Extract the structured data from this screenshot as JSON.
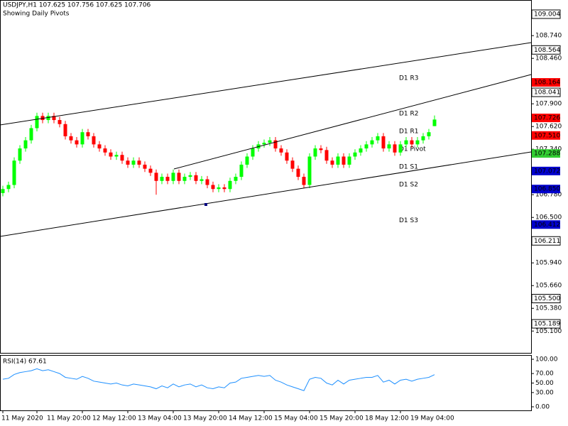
{
  "chart_data": [
    {
      "type": "candlestick",
      "title": "USDJPY,H1  107.625 107.756 107.625 107.706",
      "subtitle": "Showing Daily Pivots",
      "up_color": "#00ff00",
      "down_color": "#ff0000",
      "ylim": [
        104.831,
        109.179
      ],
      "yticks": [
        {
          "value": 108.74,
          "label": "108.740"
        },
        {
          "value": 108.46,
          "label": "108.460"
        },
        {
          "value": 107.9,
          "label": "107.900"
        },
        {
          "value": 107.62,
          "label": "107.620"
        },
        {
          "value": 107.34,
          "label": "107.340"
        },
        {
          "value": 106.78,
          "label": "106.780"
        },
        {
          "value": 106.5,
          "label": "106.500"
        },
        {
          "value": 105.94,
          "label": "105.940"
        },
        {
          "value": 105.66,
          "label": "105.660"
        },
        {
          "value": 105.38,
          "label": "105.380"
        },
        {
          "value": 105.1,
          "label": "105.100"
        }
      ],
      "xticks": [
        {
          "value": 0,
          "label": "11 May 2020"
        },
        {
          "value": 6,
          "label": "11 May 20:00"
        },
        {
          "value": 14,
          "label": "12 May 12:00"
        },
        {
          "value": 22,
          "label": "13 May 04:00"
        },
        {
          "value": 30,
          "label": "13 May 20:00"
        },
        {
          "value": 38,
          "label": "14 May 12:00"
        },
        {
          "value": 46,
          "label": "15 May 04:00"
        },
        {
          "value": 54,
          "label": "15 May 20:00"
        },
        {
          "value": 62,
          "label": "18 May 12:00"
        },
        {
          "value": 70,
          "label": "19 May 04:00"
        }
      ],
      "grid": true,
      "pivots": [
        {
          "name": "D1 R3",
          "value": 108.164,
          "label": "108.164",
          "color": "#ff0000"
        },
        {
          "name": "D1 R2",
          "value": 107.726,
          "label": "107.726",
          "color": "#ff0000"
        },
        {
          "name": "D1 R1",
          "value": 107.51,
          "label": "107.510",
          "color": "#ff0000"
        },
        {
          "name": "D1 Pivot",
          "value": 107.288,
          "label": "107.288",
          "color": "#32cd32"
        },
        {
          "name": "D1 S1",
          "value": 107.072,
          "label": "107.072",
          "color": "#0000cd"
        },
        {
          "name": "D1 S2",
          "value": 106.85,
          "label": "106.850",
          "color": "#0000cd"
        },
        {
          "name": "D1 S3",
          "value": 106.412,
          "label": "106.412",
          "color": "#0000cd"
        }
      ],
      "levels": [
        {
          "value": 109.004,
          "label": "109.004",
          "dashed": true
        },
        {
          "value": 108.564,
          "label": "108.564",
          "dashed": false
        },
        {
          "value": 108.041,
          "label": "108.041",
          "dashed": true
        },
        {
          "value": 106.211,
          "label": "106.211",
          "dashed": true
        },
        {
          "value": 105.5,
          "label": "105.500",
          "dashed": true
        },
        {
          "value": 105.189,
          "label": "105.189",
          "dashed": true
        }
      ],
      "candles": [
        [
          106.8,
          106.89,
          106.76,
          106.85
        ],
        [
          106.85,
          106.94,
          106.81,
          106.9
        ],
        [
          106.9,
          107.24,
          106.86,
          107.2
        ],
        [
          107.2,
          107.39,
          107.16,
          107.35
        ],
        [
          107.35,
          107.49,
          107.31,
          107.45
        ],
        [
          107.45,
          107.64,
          107.41,
          107.6
        ],
        [
          107.6,
          107.79,
          107.56,
          107.75
        ],
        [
          107.75,
          107.79,
          107.66,
          107.7
        ],
        [
          107.7,
          107.79,
          107.66,
          107.75
        ],
        [
          107.75,
          107.79,
          107.66,
          107.7
        ],
        [
          107.7,
          107.74,
          107.61,
          107.65
        ],
        [
          107.65,
          107.69,
          107.46,
          107.5
        ],
        [
          107.5,
          107.54,
          107.41,
          107.45
        ],
        [
          107.45,
          107.49,
          107.36,
          107.4
        ],
        [
          107.4,
          107.59,
          107.36,
          107.55
        ],
        [
          107.55,
          107.59,
          107.46,
          107.5
        ],
        [
          107.5,
          107.54,
          107.36,
          107.4
        ],
        [
          107.4,
          107.44,
          107.31,
          107.35
        ],
        [
          107.35,
          107.39,
          107.26,
          107.3
        ],
        [
          107.3,
          107.34,
          107.21,
          107.25
        ],
        [
          107.25,
          107.31,
          107.21,
          107.27
        ],
        [
          107.27,
          107.31,
          107.16,
          107.2
        ],
        [
          107.2,
          107.24,
          107.11,
          107.15
        ],
        [
          107.15,
          107.24,
          107.11,
          107.2
        ],
        [
          107.2,
          107.24,
          107.11,
          107.15
        ],
        [
          107.15,
          107.19,
          107.06,
          107.1
        ],
        [
          107.1,
          107.14,
          107.01,
          107.05
        ],
        [
          107.05,
          107.09,
          106.78,
          106.95
        ],
        [
          106.95,
          107.04,
          106.91,
          107.0
        ],
        [
          107.0,
          107.04,
          106.91,
          106.95
        ],
        [
          106.95,
          107.09,
          106.91,
          107.05
        ],
        [
          107.05,
          107.09,
          106.91,
          106.95
        ],
        [
          106.95,
          107.04,
          106.91,
          107.0
        ],
        [
          107.0,
          107.06,
          106.96,
          107.02
        ],
        [
          107.02,
          107.06,
          106.91,
          106.95
        ],
        [
          106.95,
          107.01,
          106.91,
          106.97
        ],
        [
          106.97,
          107.01,
          106.86,
          106.9
        ],
        [
          106.9,
          106.94,
          106.81,
          106.85
        ],
        [
          106.85,
          106.91,
          106.81,
          106.87
        ],
        [
          106.87,
          106.91,
          106.81,
          106.85
        ],
        [
          106.85,
          106.99,
          106.81,
          106.95
        ],
        [
          106.95,
          107.04,
          106.91,
          107.0
        ],
        [
          107.0,
          107.19,
          106.96,
          107.15
        ],
        [
          107.15,
          107.29,
          107.11,
          107.25
        ],
        [
          107.25,
          107.39,
          107.21,
          107.35
        ],
        [
          107.35,
          107.44,
          107.31,
          107.4
        ],
        [
          107.4,
          107.46,
          107.36,
          107.42
        ],
        [
          107.42,
          107.49,
          107.38,
          107.45
        ],
        [
          107.45,
          107.49,
          107.31,
          107.35
        ],
        [
          107.35,
          107.39,
          107.26,
          107.3
        ],
        [
          107.3,
          107.34,
          107.16,
          107.2
        ],
        [
          107.2,
          107.24,
          107.06,
          107.1
        ],
        [
          107.1,
          107.14,
          106.96,
          107.0
        ],
        [
          107.0,
          107.04,
          106.86,
          106.9
        ],
        [
          106.9,
          107.29,
          106.86,
          107.25
        ],
        [
          107.25,
          107.39,
          107.21,
          107.35
        ],
        [
          107.35,
          107.39,
          107.29,
          107.33
        ],
        [
          107.33,
          107.37,
          107.16,
          107.2
        ],
        [
          107.2,
          107.24,
          107.11,
          107.15
        ],
        [
          107.15,
          107.29,
          107.11,
          107.25
        ],
        [
          107.25,
          107.29,
          107.11,
          107.15
        ],
        [
          107.15,
          107.29,
          107.11,
          107.25
        ],
        [
          107.25,
          107.34,
          107.21,
          107.3
        ],
        [
          107.3,
          107.39,
          107.26,
          107.35
        ],
        [
          107.35,
          107.44,
          107.31,
          107.4
        ],
        [
          107.4,
          107.49,
          107.36,
          107.45
        ],
        [
          107.45,
          107.54,
          107.41,
          107.5
        ],
        [
          107.5,
          107.54,
          107.31,
          107.35
        ],
        [
          107.35,
          107.44,
          107.31,
          107.4
        ],
        [
          107.4,
          107.44,
          107.26,
          107.3
        ],
        [
          107.3,
          107.44,
          107.26,
          107.4
        ],
        [
          107.4,
          107.49,
          107.36,
          107.45
        ],
        [
          107.45,
          107.49,
          107.36,
          107.4
        ],
        [
          107.4,
          107.49,
          107.36,
          107.45
        ],
        [
          107.45,
          107.54,
          107.41,
          107.5
        ],
        [
          107.5,
          107.59,
          107.46,
          107.55
        ],
        [
          107.625,
          107.756,
          107.625,
          107.706
        ]
      ]
    },
    {
      "type": "line",
      "title": "RSI(14) 67.61",
      "color": "#1e90ff",
      "ylim": [
        -7.5,
        109
      ],
      "yticks": [
        {
          "value": 100,
          "label": "100.00"
        },
        {
          "value": 70,
          "label": "70.00"
        },
        {
          "value": 50,
          "label": "50.00"
        },
        {
          "value": 30,
          "label": "30.00"
        },
        {
          "value": 0,
          "label": "0.00"
        }
      ],
      "grid": true,
      "values": [
        58,
        60,
        68,
        72,
        74,
        76,
        80,
        76,
        78,
        74,
        70,
        62,
        60,
        58,
        64,
        60,
        54,
        52,
        50,
        48,
        50,
        46,
        44,
        48,
        46,
        44,
        42,
        38,
        44,
        40,
        48,
        42,
        46,
        48,
        42,
        46,
        40,
        38,
        42,
        40,
        50,
        52,
        60,
        62,
        64,
        66,
        64,
        66,
        56,
        52,
        46,
        42,
        38,
        34,
        58,
        62,
        60,
        50,
        46,
        56,
        48,
        56,
        58,
        60,
        62,
        62,
        66,
        52,
        56,
        48,
        56,
        58,
        54,
        58,
        60,
        62,
        67.61
      ]
    }
  ]
}
